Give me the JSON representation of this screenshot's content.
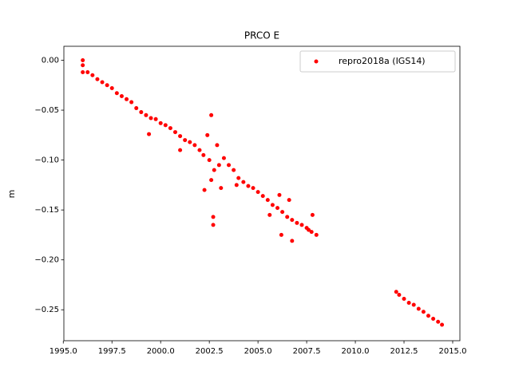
{
  "chart_data": {
    "type": "scatter",
    "title": "PRCO E",
    "ylabel": "m",
    "series": [
      {
        "name": "repro2018a (IGS14)",
        "color": "#ff0000",
        "x": [
          1996.0,
          1996.0,
          1996.0,
          1996.25,
          1996.5,
          1996.75,
          1997.0,
          1997.25,
          1997.5,
          1997.75,
          1998.0,
          1998.25,
          1998.5,
          1998.75,
          1999.0,
          1999.25,
          1999.4,
          1999.5,
          1999.75,
          2000.0,
          2000.25,
          2000.5,
          2000.75,
          2001.0,
          2001.0,
          2001.25,
          2001.5,
          2001.75,
          2002.0,
          2002.2,
          2002.25,
          2002.4,
          2002.5,
          2002.6,
          2002.6,
          2002.7,
          2002.7,
          2002.75,
          2002.9,
          2003.0,
          2003.1,
          2003.25,
          2003.5,
          2003.75,
          2003.9,
          2004.0,
          2004.25,
          2004.5,
          2004.75,
          2005.0,
          2005.25,
          2005.5,
          2005.6,
          2005.75,
          2006.0,
          2006.1,
          2006.2,
          2006.25,
          2006.5,
          2006.6,
          2006.75,
          2006.75,
          2007.0,
          2007.25,
          2007.5,
          2007.6,
          2007.75,
          2007.8,
          2008.0,
          2012.1,
          2012.25,
          2012.5,
          2012.75,
          2013.0,
          2013.25,
          2013.5,
          2013.75,
          2014.0,
          2014.25,
          2014.45
        ],
        "values": [
          -0.005,
          0.0,
          -0.012,
          -0.012,
          -0.015,
          -0.019,
          -0.022,
          -0.025,
          -0.028,
          -0.033,
          -0.036,
          -0.039,
          -0.042,
          -0.048,
          -0.052,
          -0.055,
          -0.074,
          -0.058,
          -0.059,
          -0.063,
          -0.065,
          -0.068,
          -0.072,
          -0.076,
          -0.09,
          -0.08,
          -0.082,
          -0.085,
          -0.09,
          -0.095,
          -0.13,
          -0.075,
          -0.1,
          -0.055,
          -0.12,
          -0.157,
          -0.165,
          -0.11,
          -0.085,
          -0.105,
          -0.128,
          -0.098,
          -0.105,
          -0.11,
          -0.125,
          -0.118,
          -0.122,
          -0.126,
          -0.128,
          -0.132,
          -0.136,
          -0.14,
          -0.155,
          -0.145,
          -0.148,
          -0.135,
          -0.175,
          -0.152,
          -0.157,
          -0.14,
          -0.16,
          -0.181,
          -0.163,
          -0.165,
          -0.168,
          -0.17,
          -0.172,
          -0.155,
          -0.175,
          -0.232,
          -0.235,
          -0.239,
          -0.243,
          -0.245,
          -0.249,
          -0.252,
          -0.256,
          -0.259,
          -0.262,
          -0.265
        ]
      }
    ],
    "xlim": [
      1995.03,
      2015.37
    ],
    "ylim": [
      -0.281,
      0.014
    ],
    "xticks": [
      {
        "value": 1995,
        "label": "1995.0"
      },
      {
        "value": 1997.5,
        "label": "1997.5"
      },
      {
        "value": 2000,
        "label": "2000.0"
      },
      {
        "value": 2002.5,
        "label": "2002.5"
      },
      {
        "value": 2005,
        "label": "2005.0"
      },
      {
        "value": 2007.5,
        "label": "2007.5"
      },
      {
        "value": 2010,
        "label": "2010.0"
      },
      {
        "value": 2012.5,
        "label": "2012.5"
      },
      {
        "value": 2015,
        "label": "2015.0"
      }
    ],
    "yticks": [
      {
        "value": 0,
        "label": "0.00"
      },
      {
        "value": -0.05,
        "label": "−0.05"
      },
      {
        "value": -0.1,
        "label": "−0.10"
      },
      {
        "value": -0.15,
        "label": "−0.15"
      },
      {
        "value": -0.2,
        "label": "−0.20"
      },
      {
        "value": -0.25,
        "label": "−0.25"
      }
    ],
    "legend": "upper right"
  }
}
